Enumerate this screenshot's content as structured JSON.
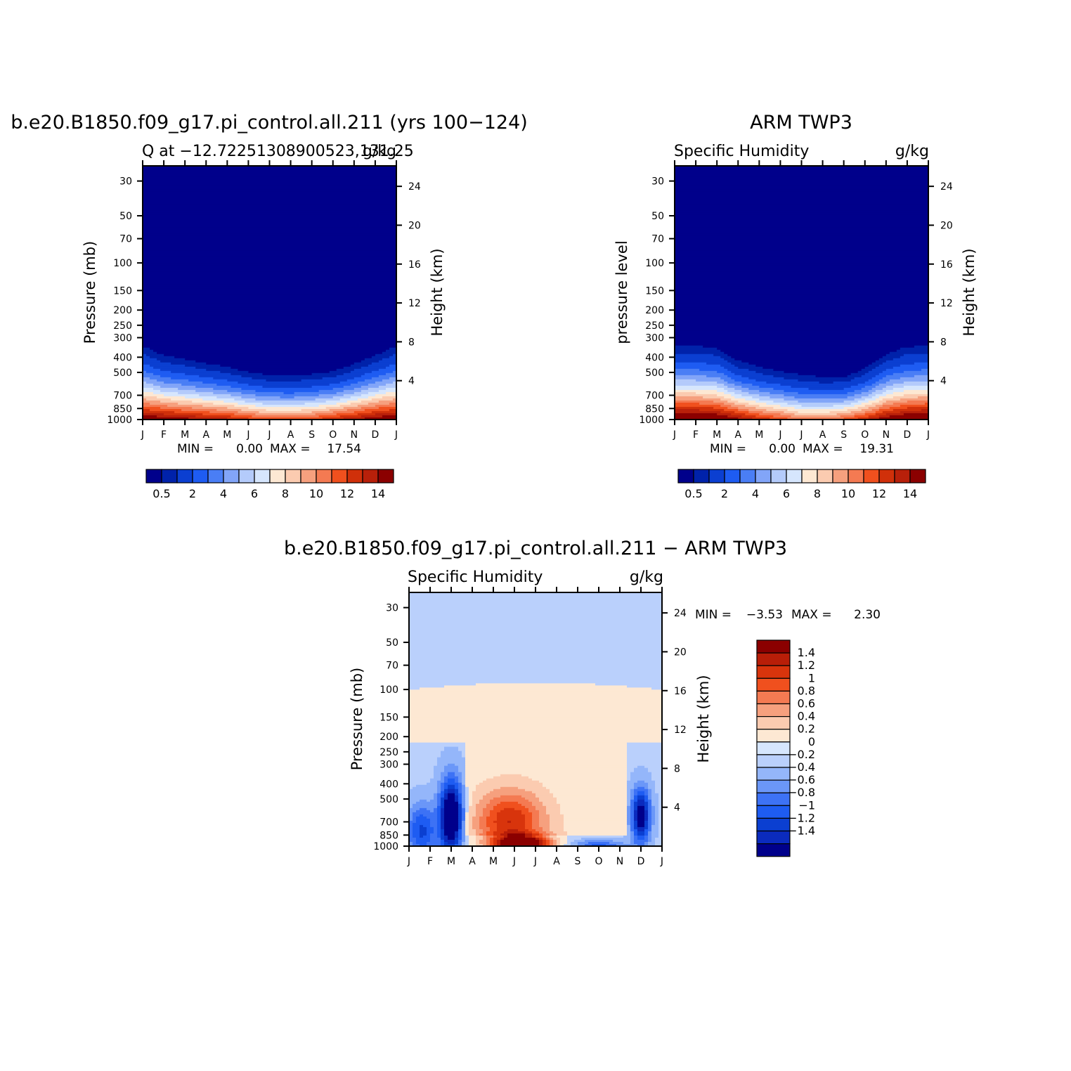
{
  "palettes": {
    "abs": [
      "#00008b",
      "#0022aa",
      "#0b3fd1",
      "#1e5cf2",
      "#4a7ef5",
      "#82a5f8",
      "#b4cbfb",
      "#d6e6fd",
      "#fde8d3",
      "#fbcbb0",
      "#f6a07e",
      "#f47a52",
      "#f0501e",
      "#d0300a",
      "#b8200a",
      "#8b0000"
    ],
    "diff": [
      "#00008b",
      "#0b2bbe",
      "#0b3fd1",
      "#1e5cf2",
      "#3d72f5",
      "#6b97f8",
      "#94b6fa",
      "#bad0fc",
      "#d6e6fd",
      "#fde8d3",
      "#fbcbb0",
      "#f6a07e",
      "#f47a52",
      "#f0501e",
      "#d8340c",
      "#b81e08",
      "#8b0000"
    ]
  },
  "panels": [
    {
      "id": "model",
      "title": "b.e20.B1850.f09_g17.pi_control.all.211 (yrs 100−124)",
      "left_string": "Q at −12.72251308900523,131.25",
      "right_string": "g/kg",
      "ylabel": "Pressure (mb)",
      "y2label": "Height (km)",
      "min_label": "MIN =",
      "min_value": "0.00",
      "max_label": "MAX =",
      "max_value": "17.54"
    },
    {
      "id": "obs",
      "title": "ARM TWP3",
      "left_string": "Specific Humidity",
      "right_string": "g/kg",
      "ylabel": "pressure level",
      "y2label": "Height (km)",
      "min_label": "MIN =",
      "min_value": "0.00",
      "max_label": "MAX =",
      "max_value": "19.31"
    },
    {
      "id": "diff",
      "title": "b.e20.B1850.f09_g17.pi_control.all.211 − ARM TWP3",
      "left_string": "Specific Humidity",
      "right_string": "g/kg",
      "ylabel": "Pressure (mb)",
      "y2label": "Height (km)",
      "min_label": "MIN =",
      "min_value": "−3.53",
      "max_label": "MAX =",
      "max_value": "2.30"
    }
  ],
  "chart_data": [
    {
      "type": "heatmap",
      "title": "b.e20.B1850.f09_g17.pi_control.all.211 (yrs 100−124)",
      "variable": "Q",
      "units": "g/kg",
      "xlabel": "",
      "x_categories": [
        "J",
        "F",
        "M",
        "A",
        "M",
        "J",
        "J",
        "A",
        "S",
        "O",
        "N",
        "D",
        "J"
      ],
      "ylabel": "Pressure (mb)",
      "y_scale": "log",
      "yticks": [
        30,
        50,
        70,
        100,
        150,
        200,
        250,
        300,
        400,
        500,
        700,
        850,
        1000
      ],
      "ylim": [
        1000,
        24
      ],
      "y2label": "Height (km)",
      "y2ticks": [
        4,
        8,
        12,
        16,
        20,
        24
      ],
      "colorbar_labels": [
        "0.5",
        "2",
        "4",
        "6",
        "8",
        "10",
        "12",
        "14"
      ],
      "min": 0.0,
      "max": 17.54,
      "moist_top_pressure_by_month": [
        300,
        350,
        370,
        395,
        420,
        455,
        475,
        480,
        470,
        450,
        400,
        350,
        300
      ],
      "surface_q_by_month": [
        15.5,
        15,
        14.5,
        14,
        13.5,
        12.5,
        11.5,
        11.5,
        12,
        13,
        14,
        15,
        15.5
      ]
    },
    {
      "type": "heatmap",
      "title": "ARM TWP3",
      "variable": "Specific Humidity",
      "units": "g/kg",
      "xlabel": "",
      "x_categories": [
        "J",
        "F",
        "M",
        "A",
        "M",
        "J",
        "J",
        "A",
        "S",
        "O",
        "N",
        "D",
        "J"
      ],
      "ylabel": "pressure level",
      "y_scale": "log",
      "yticks": [
        30,
        50,
        70,
        100,
        150,
        200,
        250,
        300,
        400,
        500,
        700,
        850,
        1000
      ],
      "ylim": [
        1000,
        24
      ],
      "y2label": "Height (km)",
      "y2ticks": [
        4,
        8,
        12,
        16,
        20,
        24
      ],
      "colorbar_labels": [
        "0.5",
        "2",
        "4",
        "6",
        "8",
        "10",
        "12",
        "14"
      ],
      "min": 0.0,
      "max": 19.31,
      "moist_top_pressure_by_month": [
        300,
        300,
        310,
        380,
        420,
        450,
        470,
        490,
        490,
        430,
        340,
        305,
        300
      ],
      "surface_q_by_month": [
        16.5,
        16.5,
        16,
        14.5,
        13,
        12,
        10.5,
        10.5,
        11.5,
        13,
        15,
        16,
        16.5
      ]
    },
    {
      "type": "heatmap",
      "title": "b.e20.B1850.f09_g17.pi_control.all.211 − ARM TWP3",
      "variable": "Specific Humidity",
      "units": "g/kg",
      "xlabel": "",
      "x_categories": [
        "J",
        "F",
        "M",
        "A",
        "M",
        "J",
        "J",
        "A",
        "S",
        "O",
        "N",
        "D",
        "J"
      ],
      "ylabel": "Pressure (mb)",
      "y_scale": "log",
      "yticks": [
        30,
        50,
        70,
        100,
        150,
        200,
        250,
        300,
        400,
        500,
        700,
        850,
        1000
      ],
      "ylim": [
        1000,
        24
      ],
      "y2label": "Height (km)",
      "y2ticks": [
        4,
        8,
        12,
        16,
        20,
        24
      ],
      "colorbar_labels": [
        "1.4",
        "1.2",
        "1",
        "0.8",
        "0.6",
        "0.4",
        "0.2",
        "0",
        "−0.2",
        "−0.4",
        "−0.6",
        "−0.8",
        "−1",
        "−1.2",
        "−1.4"
      ],
      "min": -3.53,
      "max": 2.3,
      "approx_features": {
        "stratosphere_above_100mb": -0.1,
        "upper_troposphere_100_to_220mb": 0.1,
        "dry_bias_centers": [
          {
            "month": "M",
            "pressure": 650,
            "value": -1.5
          },
          {
            "month": "D",
            "pressure": 650,
            "value": -1.3
          }
        ],
        "moist_bias_center": {
          "month": "J",
          "pressure": 950,
          "value": 1.5
        }
      }
    }
  ]
}
